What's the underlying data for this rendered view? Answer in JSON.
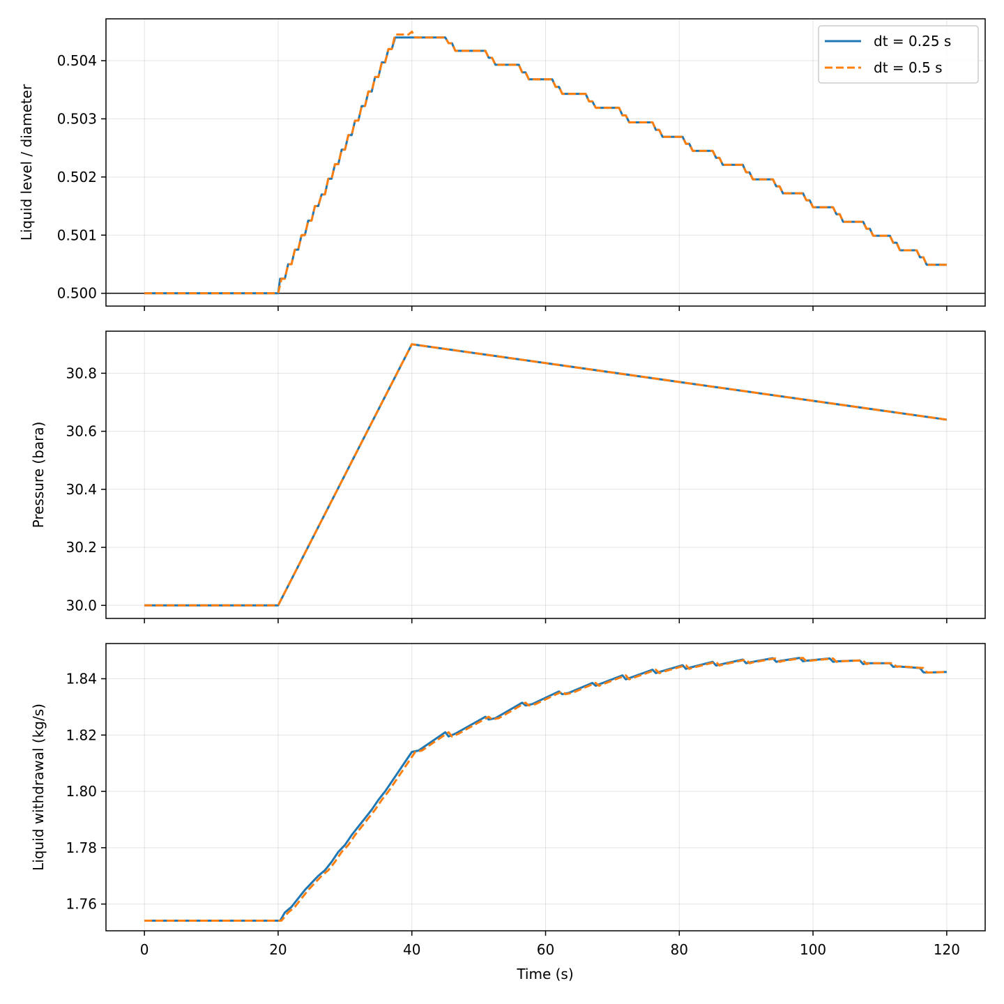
{
  "xlabel": "Time (s)",
  "colors": {
    "series_a": "#1f77b4",
    "series_b": "#ff7f0e"
  },
  "chart_data": [
    {
      "type": "line",
      "ylabel": "Liquid level / diameter",
      "xlim": [
        -5.75,
        125.75
      ],
      "ylim": [
        499.78,
        504.72
      ],
      "y_scale_note": "values are in thousandths (1e-3 of diameter)",
      "x_ticks": [
        0,
        20,
        40,
        60,
        80,
        100,
        120
      ],
      "y_ticks": [
        500,
        501,
        502,
        503,
        504
      ],
      "y_tick_labels": [
        "0.500",
        "0.501",
        "0.502",
        "0.503",
        "0.504"
      ],
      "reference_line": 500,
      "legend": {
        "placement": "top-right",
        "entries": [
          "dt = 0.25 s",
          "dt = 0.5 s"
        ]
      },
      "grid": true,
      "series": [
        {
          "name": "dt = 0.25 s",
          "style": "solid",
          "x": [
            0,
            20,
            20.3,
            21,
            21.5,
            22,
            22.5,
            23,
            23.5,
            24,
            24.5,
            25,
            25.5,
            26,
            26.5,
            27,
            27.5,
            28,
            28.5,
            29,
            29.5,
            30,
            30.5,
            31,
            31.5,
            32,
            32.5,
            33,
            33.5,
            34,
            34.5,
            35,
            35.5,
            36,
            36.5,
            37,
            37.5,
            38,
            38.5,
            39,
            39.5,
            40,
            40.3,
            45,
            45.5,
            46,
            46.5,
            51,
            51.5,
            52,
            52.5,
            56,
            56.5,
            57,
            57.5,
            61,
            61.5,
            62,
            62.5,
            66,
            66.5,
            67,
            67.5,
            71,
            71.5,
            72,
            72.5,
            76,
            76.5,
            77,
            77.5,
            80.5,
            81,
            81.5,
            82,
            85,
            85.5,
            86,
            86.5,
            89.5,
            90,
            90.5,
            91,
            94,
            94.5,
            95,
            95.5,
            98.5,
            99,
            99.5,
            100,
            103,
            103.5,
            104,
            104.5,
            107.5,
            108,
            108.5,
            109,
            111.5,
            112,
            112.5,
            113,
            115.5,
            116,
            116.5,
            117,
            120
          ],
          "y": [
            500,
            500,
            500.25,
            500.25,
            500.5,
            500.5,
            500.75,
            500.75,
            501.0,
            501.0,
            501.25,
            501.25,
            501.5,
            501.5,
            501.7,
            501.7,
            501.97,
            501.97,
            502.22,
            502.22,
            502.47,
            502.47,
            502.72,
            502.72,
            502.97,
            502.97,
            503.22,
            503.22,
            503.47,
            503.47,
            503.72,
            503.72,
            503.97,
            503.97,
            504.2,
            504.2,
            504.4,
            504.4,
            504.4,
            504.4,
            504.4,
            504.4,
            504.4,
            504.4,
            504.3,
            504.3,
            504.17,
            504.17,
            504.05,
            504.05,
            503.93,
            503.93,
            503.8,
            503.8,
            503.68,
            503.68,
            503.55,
            503.55,
            503.43,
            503.43,
            503.3,
            503.3,
            503.19,
            503.19,
            503.06,
            503.06,
            502.94,
            502.94,
            502.81,
            502.81,
            502.69,
            502.69,
            502.57,
            502.57,
            502.45,
            502.45,
            502.33,
            502.33,
            502.21,
            502.21,
            502.08,
            502.08,
            501.96,
            501.96,
            501.84,
            501.84,
            501.72,
            501.72,
            501.6,
            501.6,
            501.48,
            501.48,
            501.36,
            501.36,
            501.23,
            501.23,
            501.11,
            501.11,
            500.99,
            500.99,
            500.87,
            500.87,
            500.74,
            500.74,
            500.62,
            500.62,
            500.49,
            500.49
          ]
        },
        {
          "name": "dt = 0.5 s",
          "style": "dashed",
          "x": [
            0,
            20,
            20.5,
            21,
            21.5,
            22,
            22.5,
            23,
            23.5,
            24,
            24.5,
            25,
            25.5,
            26,
            26.5,
            27,
            27.5,
            28,
            28.5,
            29,
            29.5,
            30,
            30.5,
            31,
            31.5,
            32,
            32.5,
            33,
            33.5,
            34,
            34.5,
            35,
            35.5,
            36,
            36.5,
            37,
            37.5,
            38,
            38.5,
            39,
            39.5,
            40,
            40.5,
            45,
            45.5,
            46,
            46.5,
            51,
            51.5,
            52,
            52.5,
            56,
            56.5,
            57,
            57.5,
            61,
            61.5,
            62,
            62.5,
            66,
            66.5,
            67,
            67.5,
            71,
            71.5,
            72,
            72.5,
            76,
            76.5,
            77,
            77.5,
            80.5,
            81,
            81.5,
            82,
            85,
            85.5,
            86,
            86.5,
            89.5,
            90,
            90.5,
            91,
            94,
            94.5,
            95,
            95.5,
            98.5,
            99,
            99.5,
            100,
            103,
            103.5,
            104,
            104.5,
            107.5,
            108,
            108.5,
            109,
            111.5,
            112,
            112.5,
            113,
            115.5,
            116,
            116.5,
            117,
            120
          ],
          "y": [
            500,
            500,
            500.25,
            500.25,
            500.5,
            500.5,
            500.75,
            500.75,
            501.0,
            501.0,
            501.25,
            501.25,
            501.5,
            501.5,
            501.7,
            501.7,
            501.97,
            501.97,
            502.22,
            502.22,
            502.47,
            502.47,
            502.72,
            502.72,
            502.97,
            502.97,
            503.22,
            503.22,
            503.47,
            503.47,
            503.72,
            503.72,
            503.97,
            503.97,
            504.2,
            504.2,
            504.45,
            504.45,
            504.45,
            504.45,
            504.45,
            504.5,
            504.4,
            504.4,
            504.3,
            504.3,
            504.17,
            504.17,
            504.05,
            504.05,
            503.93,
            503.93,
            503.8,
            503.8,
            503.68,
            503.68,
            503.55,
            503.55,
            503.43,
            503.43,
            503.3,
            503.3,
            503.19,
            503.19,
            503.06,
            503.06,
            502.94,
            502.94,
            502.81,
            502.81,
            502.69,
            502.69,
            502.57,
            502.57,
            502.45,
            502.45,
            502.33,
            502.33,
            502.21,
            502.21,
            502.08,
            502.08,
            501.96,
            501.96,
            501.84,
            501.84,
            501.72,
            501.72,
            501.6,
            501.6,
            501.48,
            501.48,
            501.36,
            501.36,
            501.23,
            501.23,
            501.11,
            501.11,
            500.99,
            500.99,
            500.87,
            500.87,
            500.74,
            500.74,
            500.62,
            500.62,
            500.49,
            500.49
          ]
        }
      ]
    },
    {
      "type": "line",
      "ylabel": "Pressure (bara)",
      "xlim": [
        -5.75,
        125.75
      ],
      "ylim": [
        29.955,
        30.945
      ],
      "x_ticks": [
        0,
        20,
        40,
        60,
        80,
        100,
        120
      ],
      "y_ticks": [
        30.0,
        30.2,
        30.4,
        30.6,
        30.8
      ],
      "y_tick_labels": [
        "30.0",
        "30.2",
        "30.4",
        "30.6",
        "30.8"
      ],
      "grid": true,
      "series": [
        {
          "name": "dt = 0.25 s",
          "style": "solid",
          "x": [
            0,
            20,
            40,
            60,
            80,
            100,
            120
          ],
          "y": [
            30.0,
            30.0,
            30.9,
            30.835,
            30.77,
            30.705,
            30.64
          ]
        },
        {
          "name": "dt = 0.5 s",
          "style": "dashed",
          "x": [
            0,
            20,
            40,
            60,
            80,
            100,
            120
          ],
          "y": [
            30.0,
            30.0,
            30.9,
            30.835,
            30.77,
            30.705,
            30.64
          ]
        }
      ]
    },
    {
      "type": "line",
      "ylabel": "Liquid withdrawal (kg/s)",
      "xlim": [
        -5.75,
        125.75
      ],
      "ylim": [
        1.7505,
        1.8525
      ],
      "x_ticks": [
        0,
        20,
        40,
        60,
        80,
        100,
        120
      ],
      "y_ticks": [
        1.76,
        1.78,
        1.8,
        1.82,
        1.84
      ],
      "y_tick_labels": [
        "1.76",
        "1.78",
        "1.80",
        "1.82",
        "1.84"
      ],
      "grid": true,
      "series": [
        {
          "name": "dt = 0.25 s",
          "style": "solid",
          "x": [
            0,
            20.3,
            21,
            22,
            23,
            24,
            25,
            26,
            27,
            28,
            29,
            30,
            31,
            32,
            33,
            34,
            35,
            36,
            37,
            38,
            39,
            40,
            41,
            45,
            45.5,
            46.5,
            51,
            51.5,
            52.5,
            56.5,
            57,
            58,
            62,
            62.5,
            63.5,
            67,
            67.5,
            68,
            71.5,
            72,
            72.5,
            76,
            76.5,
            77,
            80.5,
            81,
            81.5,
            85,
            85.5,
            86,
            89.5,
            90,
            90.5,
            94,
            94.5,
            95,
            98,
            98.5,
            99,
            102.5,
            103,
            103.5,
            107,
            107.5,
            108,
            111.5,
            112,
            112.5,
            116,
            116.5,
            117,
            120
          ],
          "y": [
            1.7541,
            1.7541,
            1.757,
            1.759,
            1.762,
            1.765,
            1.7675,
            1.77,
            1.772,
            1.775,
            1.7785,
            1.781,
            1.7845,
            1.7875,
            1.7905,
            1.7935,
            1.797,
            1.8,
            1.8035,
            1.807,
            1.8105,
            1.814,
            1.8145,
            1.821,
            1.8195,
            1.8205,
            1.8265,
            1.8255,
            1.826,
            1.8315,
            1.8305,
            1.831,
            1.8355,
            1.8345,
            1.835,
            1.8385,
            1.8375,
            1.838,
            1.8412,
            1.8398,
            1.8402,
            1.8432,
            1.842,
            1.8424,
            1.8448,
            1.8435,
            1.8439,
            1.846,
            1.8447,
            1.845,
            1.8468,
            1.8455,
            1.8458,
            1.8473,
            1.846,
            1.8463,
            1.8474,
            1.8462,
            1.8464,
            1.8472,
            1.846,
            1.8462,
            1.8465,
            1.8452,
            1.8455,
            1.8455,
            1.8442,
            1.8444,
            1.8438,
            1.8423,
            1.8422,
            1.8424
          ]
        },
        {
          "name": "dt = 0.5 s",
          "style": "dashed",
          "x": [
            0,
            20.5,
            21.5,
            22.5,
            23.5,
            24.5,
            25.5,
            26.5,
            27.5,
            28.5,
            29.5,
            30.5,
            31.5,
            32.5,
            33.5,
            34.5,
            35.5,
            36.5,
            37.5,
            38.5,
            39.5,
            40.5,
            41.5,
            45.5,
            46,
            47,
            51.5,
            52,
            53,
            57,
            57.5,
            58.5,
            62.5,
            63,
            64,
            67.5,
            68,
            68.5,
            72,
            72.5,
            73,
            76.5,
            77,
            77.5,
            81,
            81.5,
            82,
            85.5,
            86,
            86.5,
            90,
            90.5,
            91,
            94.5,
            95,
            95.5,
            98.5,
            99,
            99.5,
            103,
            103.5,
            104,
            107.5,
            108,
            108.5,
            112,
            112.5,
            113,
            116.5,
            117,
            117.5,
            120
          ],
          "y": [
            1.7541,
            1.7541,
            1.757,
            1.759,
            1.762,
            1.765,
            1.7675,
            1.77,
            1.772,
            1.775,
            1.7785,
            1.781,
            1.7845,
            1.7875,
            1.7905,
            1.7935,
            1.797,
            1.8,
            1.8035,
            1.807,
            1.8105,
            1.814,
            1.8145,
            1.821,
            1.8195,
            1.8205,
            1.8265,
            1.8255,
            1.826,
            1.8315,
            1.8305,
            1.831,
            1.8355,
            1.8345,
            1.835,
            1.8385,
            1.8375,
            1.838,
            1.8412,
            1.8398,
            1.8402,
            1.8432,
            1.842,
            1.8424,
            1.8448,
            1.8435,
            1.8439,
            1.846,
            1.8447,
            1.845,
            1.8468,
            1.8455,
            1.8458,
            1.8473,
            1.846,
            1.8463,
            1.8474,
            1.8462,
            1.8464,
            1.8472,
            1.846,
            1.8462,
            1.8465,
            1.8452,
            1.8455,
            1.8455,
            1.8442,
            1.8444,
            1.8438,
            1.8423,
            1.8422,
            1.8424
          ]
        }
      ]
    }
  ]
}
